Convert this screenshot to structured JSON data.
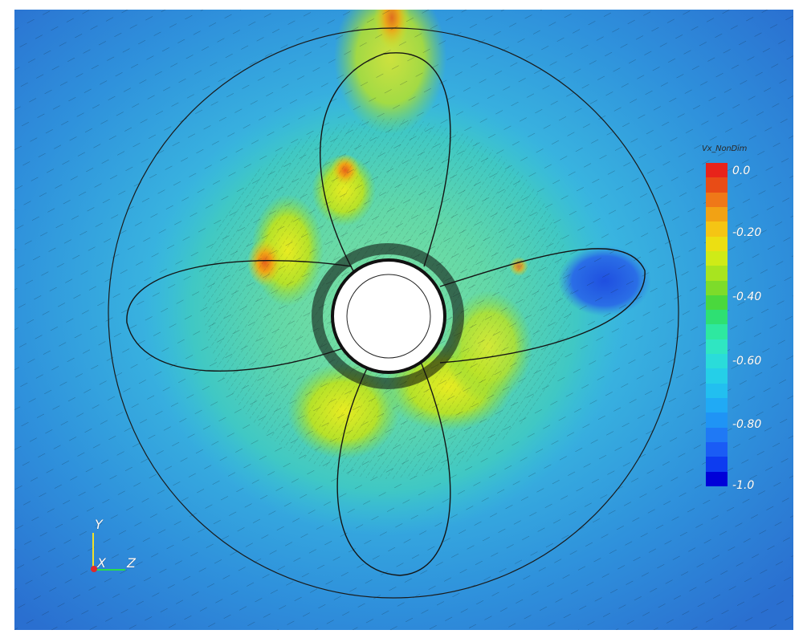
{
  "colorbar": {
    "title": "Vx_NonDim",
    "labels": [
      "0.0",
      "-0.20",
      "-0.40",
      "-0.60",
      "-0.80",
      "-1.0"
    ],
    "range": [
      -1.0,
      0.0
    ],
    "bands": [
      "#0000d8",
      "#0d3cf0",
      "#1a5cf5",
      "#1f79f5",
      "#1f94f5",
      "#20aaf5",
      "#22bff0",
      "#25cfe8",
      "#2adcda",
      "#2fe6c2",
      "#2ee8a0",
      "#2ee073",
      "#4ad83d",
      "#7ddc2a",
      "#a8e41f",
      "#cfeb17",
      "#ecdf12",
      "#f5c514",
      "#f2a214",
      "#ef7818",
      "#e84c16",
      "#e8231a"
    ]
  },
  "axes": {
    "y": "Y",
    "x": "X",
    "z": "Z"
  },
  "colors": {
    "background_field": "#2f7fd8",
    "near_blade_field": "#5fdcc8",
    "hub": "#ffffff",
    "vectors": "#111111"
  }
}
